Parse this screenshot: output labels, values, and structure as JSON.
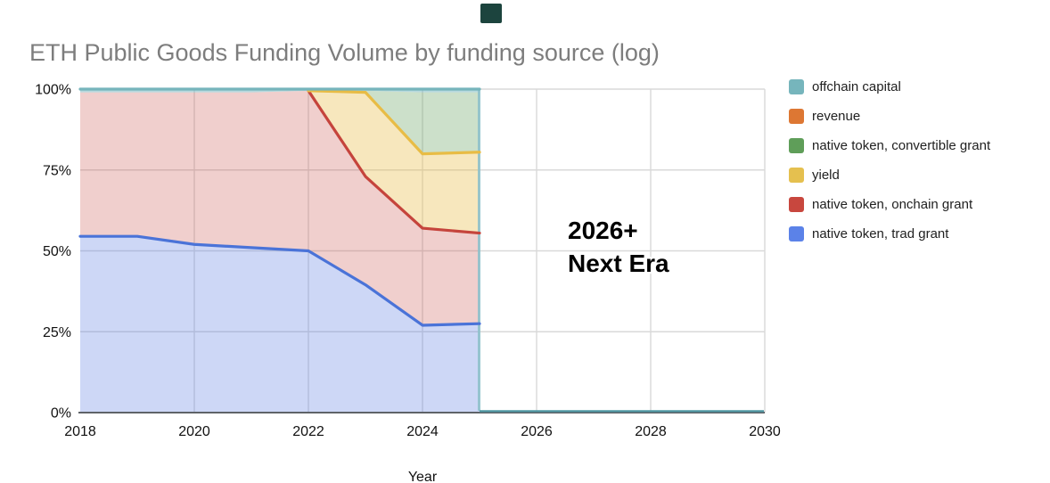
{
  "title": "ETH Public Goods Funding Volume by funding source (log)",
  "annotation": {
    "line1": "2026+",
    "line2": "Next Era"
  },
  "colors": {
    "title_text": "#7d7d7d",
    "grid": "#d9d9d9",
    "axis": "#5f6368",
    "tick_text": "#111111",
    "legend_text": "#212121",
    "area_edge_line": "#8fc1cb",
    "baseline_extension": "#4e98a3",
    "dark_marker": "#1c443e",
    "annotation_text": "#000000"
  },
  "legend": {
    "items": [
      {
        "label": "offchain capital",
        "color": "#76b5bc"
      },
      {
        "label": "revenue",
        "color": "#dd7733"
      },
      {
        "label": "native token, convertible grant",
        "color": "#5f9e59"
      },
      {
        "label": "yield",
        "color": "#e5c04f"
      },
      {
        "label": "native token, onchain grant",
        "color": "#c8473e"
      },
      {
        "label": "native token, trad grant",
        "color": "#5b82e8"
      }
    ]
  },
  "chart_data": {
    "type": "area",
    "stacking": "percent",
    "title": "ETH Public Goods Funding Volume by funding source (log)",
    "xlabel": "Year",
    "ylabel": "",
    "x_range": [
      2018,
      2030
    ],
    "y_range": [
      0,
      100
    ],
    "x_tick_labels": [
      "2018",
      "2020",
      "2022",
      "2024",
      "2026",
      "2028",
      "2030"
    ],
    "x_tick_years": [
      2018,
      2020,
      2022,
      2024,
      2026,
      2028,
      2030
    ],
    "y_tick_labels": [
      "0%",
      "25%",
      "50%",
      "75%",
      "100%"
    ],
    "y_tick_values": [
      0,
      25,
      50,
      75,
      100
    ],
    "grid": true,
    "legend_position": "right",
    "data_years": [
      2018,
      2019,
      2020,
      2021,
      2022,
      2023,
      2024,
      2025
    ],
    "data_end_year": 2025,
    "series": [
      {
        "name": "native token, trad grant",
        "values": [
          54.5,
          54.5,
          52,
          51,
          50,
          39.5,
          27,
          27.5
        ],
        "stroke": "#4a73d8",
        "fill": "rgba(90,124,226,0.30)",
        "line_start": 2018
      },
      {
        "name": "native token, onchain grant",
        "values": [
          44.5,
          44.5,
          47,
          48,
          49.5,
          33.5,
          30,
          28
        ],
        "stroke": "#c5443c",
        "fill": "rgba(197,68,60,0.26)",
        "line_start": 2022
      },
      {
        "name": "yield",
        "values": [
          0,
          0,
          0,
          0,
          0,
          26,
          23,
          25
        ],
        "stroke": "#e8bc45",
        "fill": "rgba(233,184,62,0.34)",
        "line_start": 2022
      },
      {
        "name": "native token, convertible grant",
        "values": [
          0,
          0,
          0,
          0,
          0,
          0.5,
          19,
          18.5
        ],
        "stroke": null,
        "fill": "rgba(95,158,89,0.32)",
        "line_start": null
      },
      {
        "name": "revenue",
        "values": [
          0,
          0,
          0,
          0,
          0,
          0,
          0,
          0
        ],
        "stroke": null,
        "fill": "rgba(221,119,51,0.3)",
        "line_start": null
      },
      {
        "name": "offchain capital",
        "values": [
          1,
          1,
          1,
          1,
          0.5,
          0.5,
          1,
          1
        ],
        "stroke": "#76b5bc",
        "fill": "rgba(111,179,189,0.50)",
        "line_start": 2018
      }
    ],
    "annotations": [
      {
        "text": "2026+ Next Era",
        "x": 2026,
        "y": 55
      }
    ]
  }
}
